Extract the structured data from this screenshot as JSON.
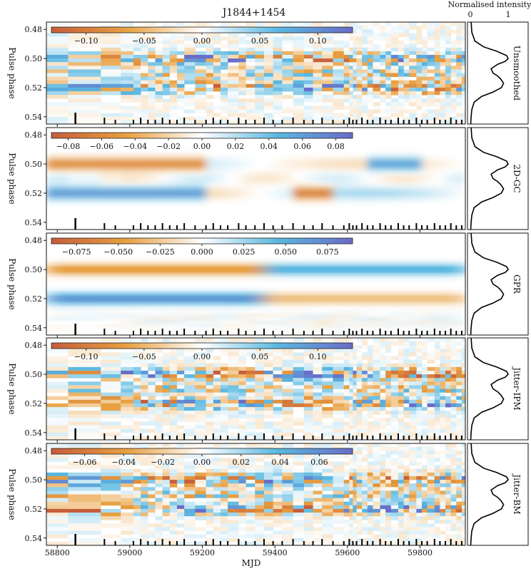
{
  "title": "J1844+1454",
  "profile_axis_label": "Normalised intensity",
  "profile_ticks": [
    "0",
    "1"
  ],
  "xlabel": "MJD",
  "ylabel": "Pulse phase",
  "colors": {
    "negative": "#c65d3b",
    "mid_negative": "#e8a040",
    "zero": "#ffffff",
    "mid_positive": "#5ab8e0",
    "positive": "#6a6cc8"
  },
  "chart_data": [
    {
      "type": "heatmap",
      "panel": "Unsmoothed",
      "xlim": [
        58770,
        59925
      ],
      "ylim": [
        0.545,
        0.475
      ],
      "xticks": [
        58800,
        59000,
        59200,
        59400,
        59600,
        59800
      ],
      "yticks": [
        0.48,
        0.5,
        0.52,
        0.54
      ],
      "colorbar_range": [
        -0.13,
        0.13
      ],
      "colorbar_ticks": [
        "−0.10",
        "−0.05",
        "0.00",
        "0.05",
        "0.10"
      ],
      "ytick_labels": [
        "0.48",
        "0.50",
        "0.52",
        "0.54"
      ]
    },
    {
      "type": "heatmap",
      "panel": "2D-GC",
      "xlim": [
        58770,
        59925
      ],
      "ylim": [
        0.545,
        0.475
      ],
      "xticks": [
        58800,
        59000,
        59200,
        59400,
        59600,
        59800
      ],
      "yticks": [
        0.48,
        0.5,
        0.52,
        0.54
      ],
      "colorbar_range": [
        -0.09,
        0.09
      ],
      "colorbar_ticks": [
        "−0.08",
        "−0.06",
        "−0.04",
        "−0.02",
        "0.00",
        "0.02",
        "0.04",
        "0.06",
        "0.08"
      ],
      "ytick_labels": [
        "0.48",
        "0.50",
        "0.52",
        "0.54"
      ]
    },
    {
      "type": "heatmap",
      "panel": "GPR",
      "xlim": [
        58770,
        59925
      ],
      "ylim": [
        0.545,
        0.475
      ],
      "xticks": [
        58800,
        59000,
        59200,
        59400,
        59600,
        59800
      ],
      "yticks": [
        0.48,
        0.5,
        0.52,
        0.54
      ],
      "colorbar_range": [
        -0.09,
        0.09
      ],
      "colorbar_ticks": [
        "−0.075",
        "−0.050",
        "−0.025",
        "0.000",
        "0.025",
        "0.050",
        "0.075"
      ],
      "ytick_labels": [
        "0.48",
        "0.50",
        "0.52",
        "0.54"
      ]
    },
    {
      "type": "heatmap",
      "panel": "Jitter-IPM",
      "xlim": [
        58770,
        59925
      ],
      "ylim": [
        0.545,
        0.475
      ],
      "xticks": [
        58800,
        59000,
        59200,
        59400,
        59600,
        59800
      ],
      "yticks": [
        0.48,
        0.5,
        0.52,
        0.54
      ],
      "colorbar_range": [
        -0.13,
        0.13
      ],
      "colorbar_ticks": [
        "−0.10",
        "−0.05",
        "0.00",
        "0.05",
        "0.10"
      ],
      "ytick_labels": [
        "0.48",
        "0.50",
        "0.52",
        "0.54"
      ]
    },
    {
      "type": "heatmap",
      "panel": "Jitter-BM",
      "xlim": [
        58770,
        59925
      ],
      "ylim": [
        0.545,
        0.475
      ],
      "xticks": [
        58800,
        59000,
        59200,
        59400,
        59600,
        59800
      ],
      "yticks": [
        0.48,
        0.5,
        0.52,
        0.54
      ],
      "colorbar_range": [
        -0.077,
        0.077
      ],
      "colorbar_ticks": [
        "−0.06",
        "−0.04",
        "−0.02",
        "0.00",
        "0.02",
        "0.04",
        "0.06"
      ],
      "ytick_labels": [
        "0.48",
        "0.50",
        "0.52",
        "0.54"
      ]
    }
  ],
  "xtick_labels": [
    "58800",
    "59000",
    "59200",
    "59400",
    "59600",
    "59800"
  ],
  "observation_mjds": [
    58850,
    58930,
    58960,
    59010,
    59030,
    59050,
    59070,
    59090,
    59110,
    59130,
    59150,
    59180,
    59210,
    59230,
    59250,
    59270,
    59300,
    59320,
    59345,
    59370,
    59395,
    59420,
    59450,
    59480,
    59505,
    59530,
    59560,
    59590,
    59605,
    59615,
    59625,
    59640,
    59655,
    59670,
    59690,
    59705,
    59720,
    59740,
    59755,
    59770,
    59790,
    59805,
    59820,
    59840,
    59855,
    59870,
    59885,
    59900,
    59915
  ],
  "template_profile": {
    "phase": [
      0.475,
      0.482,
      0.488,
      0.492,
      0.495,
      0.498,
      0.5,
      0.502,
      0.504,
      0.507,
      0.51,
      0.512,
      0.514,
      0.517,
      0.52,
      0.523,
      0.526,
      0.53,
      0.535,
      0.54,
      0.545
    ],
    "intensity": [
      0.02,
      0.04,
      0.12,
      0.35,
      0.7,
      0.96,
      1.0,
      0.92,
      0.72,
      0.55,
      0.6,
      0.72,
      0.8,
      0.88,
      0.82,
      0.6,
      0.3,
      0.1,
      0.04,
      0.02,
      0.01
    ]
  }
}
